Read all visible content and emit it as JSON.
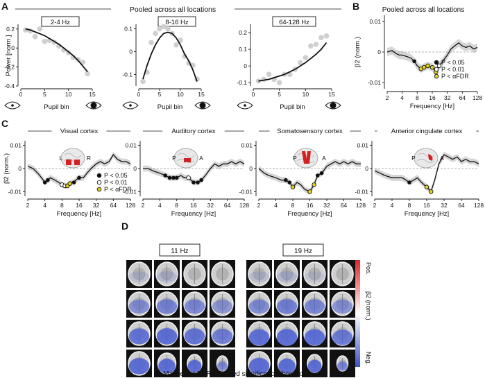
{
  "panel_letters": {
    "a": "A",
    "b": "B",
    "c": "C",
    "d": "D"
  },
  "panel_a": {
    "title": "Pooled across all locations",
    "ylabel": "Power [norm.]",
    "xlabel": "Pupil bin",
    "subplots": [
      {
        "label": "2-4 Hz",
        "yticks": [
          "0.2",
          "0",
          "-0.2",
          "-0.4"
        ],
        "xticks": [
          "0",
          "5",
          "10",
          "15"
        ]
      },
      {
        "label": "8-16 Hz",
        "yticks": [
          "0.1",
          "0",
          "-0.1"
        ],
        "xticks": [
          "0",
          "5",
          "10",
          "15"
        ]
      },
      {
        "label": "64-128 Hz",
        "yticks": [
          "0.2",
          "0.1",
          "0",
          "-0.1"
        ],
        "xticks": [
          "0",
          "5",
          "10",
          "15"
        ]
      }
    ]
  },
  "panel_b": {
    "title": "Pooled across all locations",
    "ylabel": "β2 (norm.)",
    "xlabel": "Frequency [Hz]",
    "yticks": [
      "0.01",
      "0",
      "-0.01"
    ],
    "xticks": [
      "2",
      "4",
      "8",
      "16",
      "32",
      "64",
      "128"
    ],
    "legend": [
      {
        "text": "P < 0.05"
      },
      {
        "text": "P < 0.01"
      },
      {
        "text": "P < αFDR"
      }
    ]
  },
  "panel_c": {
    "ylabel": "β2 (norm.)",
    "xlabel": "Frequency [Hz]",
    "yticks": [
      "0.01",
      "0",
      "-0.01"
    ],
    "xticks": [
      "2",
      "4",
      "8",
      "16",
      "32",
      "64",
      "128"
    ],
    "subplots": [
      {
        "title": "Visual cortex",
        "brain_left": "L",
        "brain_right": "R"
      },
      {
        "title": "Auditory cortex",
        "brain_left": "P",
        "brain_right": "A"
      },
      {
        "title": "Somatosensory cortex",
        "brain_left": "P",
        "brain_right": "A"
      },
      {
        "title": "Anterior cingulate cortex",
        "brain_left": "P",
        "brain_right": "A"
      }
    ],
    "legend": [
      {
        "text": "P < 0.05"
      },
      {
        "text": "P < 0.01"
      },
      {
        "text": "P < αFDR"
      }
    ]
  },
  "panel_d": {
    "left_label": "11 Hz",
    "right_label": "19 Hz",
    "colorbar_top": "Pos.",
    "colorbar_mid": "β2 (norm.)",
    "colorbar_bottom": "Neg.",
    "caption": "Masked at FDR-adjusted significance threshold"
  },
  "colors": {
    "fdr": "#e6d21e",
    "band": "#d6d6d6",
    "pos": "#e02424",
    "neg": "#3a4fc4",
    "brain_region": "#d42020"
  },
  "chart_data": [
    {
      "type": "scatter",
      "title": "2-4 Hz",
      "xlabel": "Pupil bin",
      "ylabel": "Power [norm.]",
      "xlim": [
        0,
        15
      ],
      "ylim": [
        -0.4,
        0.25
      ],
      "x": [
        1,
        2,
        3,
        4,
        5,
        6,
        7,
        8,
        9,
        10,
        11,
        12,
        13,
        14
      ],
      "y": [
        0.19,
        0.18,
        0.12,
        0.2,
        0.07,
        0.08,
        0.06,
        0.02,
        -0.02,
        -0.05,
        -0.1,
        -0.12,
        -0.15,
        -0.27
      ],
      "fit_x": [
        1,
        2,
        3,
        4,
        5,
        6,
        7,
        8,
        9,
        10,
        11,
        12,
        13,
        14
      ],
      "fit_y": [
        0.2,
        0.19,
        0.17,
        0.15,
        0.13,
        0.1,
        0.07,
        0.04,
        0.0,
        -0.04,
        -0.08,
        -0.13,
        -0.19,
        -0.25
      ]
    },
    {
      "type": "scatter",
      "title": "8-16 Hz",
      "xlabel": "Pupil bin",
      "xlim": [
        0,
        15
      ],
      "ylim": [
        -0.15,
        0.12
      ],
      "x": [
        1,
        2,
        3,
        4,
        5,
        6,
        7,
        8,
        9,
        10,
        11,
        12,
        13,
        14
      ],
      "y": [
        -0.13,
        -0.09,
        0.04,
        0.08,
        0.1,
        0.11,
        0.1,
        0.08,
        0.03,
        0.05,
        -0.02,
        -0.05,
        -0.06,
        -0.12
      ],
      "fit_x": [
        1,
        2,
        3,
        4,
        5,
        6,
        7,
        8,
        9,
        10,
        11,
        12,
        13,
        14
      ],
      "fit_y": [
        -0.12,
        -0.06,
        -0.01,
        0.03,
        0.06,
        0.08,
        0.085,
        0.08,
        0.06,
        0.03,
        -0.01,
        -0.04,
        -0.08,
        -0.13
      ]
    },
    {
      "type": "scatter",
      "title": "64-128 Hz",
      "xlabel": "Pupil bin",
      "xlim": [
        0,
        15
      ],
      "ylim": [
        -0.12,
        0.25
      ],
      "x": [
        1,
        2,
        3,
        4,
        5,
        6,
        7,
        8,
        9,
        10,
        11,
        12,
        13,
        14
      ],
      "y": [
        -0.09,
        -0.08,
        -0.05,
        -0.08,
        -0.1,
        -0.05,
        -0.05,
        -0.02,
        0.02,
        0.05,
        0.12,
        0.13,
        0.17,
        0.18
      ],
      "fit_x": [
        1,
        2,
        3,
        4,
        5,
        6,
        7,
        8,
        9,
        10,
        11,
        12,
        13,
        14
      ],
      "fit_y": [
        -0.09,
        -0.085,
        -0.08,
        -0.07,
        -0.06,
        -0.05,
        -0.035,
        -0.02,
        0.0,
        0.02,
        0.045,
        0.07,
        0.1,
        0.14
      ]
    },
    {
      "type": "line",
      "title": "Pooled across all locations",
      "xlabel": "Frequency [Hz]",
      "ylabel": "β2 (norm.)",
      "xscale": "log2",
      "xlim": [
        2,
        128
      ],
      "ylim": [
        -0.012,
        0.012
      ],
      "x": [
        2,
        2.5,
        3,
        3.5,
        4,
        5,
        6,
        7,
        8,
        9.5,
        11,
        13,
        16,
        19,
        22,
        26,
        32,
        38,
        45,
        54,
        64,
        76,
        90,
        108,
        128
      ],
      "y": [
        0.0,
        0.0005,
        -0.0005,
        -0.001,
        -0.001,
        -0.0015,
        -0.002,
        -0.003,
        -0.0045,
        -0.0055,
        -0.005,
        -0.0045,
        -0.005,
        -0.0065,
        -0.0045,
        -0.003,
        -0.001,
        0.001,
        0.002,
        0.003,
        0.002,
        0.0015,
        0.002,
        0.001,
        0.0015
      ],
      "sig_p05_x": [
        7
      ],
      "sig_fdr_x": [
        9.5,
        11,
        13,
        16,
        19
      ],
      "sig_p01_x": [
        22
      ]
    },
    {
      "type": "line",
      "title": "Visual cortex",
      "xscale": "log2",
      "xlim": [
        2,
        128
      ],
      "ylim": [
        -0.012,
        0.012
      ],
      "x": [
        2,
        2.5,
        3,
        3.5,
        4,
        4.5,
        5,
        6,
        7,
        8,
        9,
        10,
        11,
        12,
        13,
        14,
        16,
        19,
        22,
        26,
        32,
        38,
        45,
        54,
        64,
        76,
        90,
        108,
        128
      ],
      "y": [
        0.001,
        0.0,
        -0.002,
        -0.004,
        -0.006,
        -0.005,
        -0.004,
        -0.005,
        -0.006,
        -0.007,
        -0.0075,
        -0.0075,
        -0.0065,
        -0.006,
        -0.006,
        -0.005,
        -0.004,
        -0.004,
        -0.002,
        0.0,
        0.002,
        0.003,
        0.002,
        0.003,
        0.006,
        0.004,
        0.003,
        0.003,
        0.002
      ],
      "sig_p05_x": [
        4,
        4.5,
        13,
        16
      ],
      "sig_p01_x": [
        8,
        9
      ],
      "sig_fdr_x": [
        10,
        11
      ]
    },
    {
      "type": "line",
      "title": "Auditory cortex",
      "xscale": "log2",
      "xlim": [
        2,
        128
      ],
      "ylim": [
        -0.012,
        0.012
      ],
      "x": [
        2,
        2.5,
        3,
        4,
        5,
        6,
        7,
        8,
        9.5,
        11,
        13,
        16,
        19,
        22,
        26,
        32,
        38,
        45,
        54,
        64,
        76,
        90,
        108,
        128
      ],
      "y": [
        0.0,
        0.0,
        -0.001,
        -0.002,
        -0.003,
        -0.004,
        -0.004,
        -0.004,
        -0.003,
        -0.004,
        -0.004,
        -0.006,
        -0.006,
        -0.005,
        -0.003,
        0.0,
        0.002,
        0.001,
        0.002,
        0.002,
        0.003,
        0.002,
        0.003,
        0.002
      ],
      "sig_p05_x": [
        5,
        6,
        7,
        8,
        16,
        19,
        22
      ],
      "sig_p01_x": [
        13
      ]
    },
    {
      "type": "line",
      "title": "Somatosensory cortex",
      "xscale": "log2",
      "xlim": [
        2,
        128
      ],
      "ylim": [
        -0.012,
        0.012
      ],
      "x": [
        2,
        2.5,
        3,
        4,
        5,
        6,
        7,
        8,
        9.5,
        11,
        13,
        16,
        19,
        22,
        26,
        32,
        38,
        45,
        54,
        64,
        76,
        90,
        108,
        128
      ],
      "y": [
        0.0,
        -0.002,
        -0.003,
        -0.004,
        -0.005,
        -0.005,
        -0.006,
        -0.008,
        -0.006,
        -0.007,
        -0.009,
        -0.01,
        -0.007,
        -0.003,
        -0.002,
        0.001,
        0.002,
        0.003,
        0.002,
        0.003,
        0.002,
        0.003,
        0.002,
        0.002
      ],
      "sig_p05_x": [
        6,
        7,
        22,
        26
      ],
      "sig_fdr_x": [
        8,
        16,
        19
      ]
    },
    {
      "type": "line",
      "title": "Anterior cingulate cortex",
      "xscale": "log2",
      "xlim": [
        2,
        128
      ],
      "ylim": [
        -0.012,
        0.012
      ],
      "x": [
        2,
        2.5,
        3,
        4,
        5,
        6,
        7,
        8,
        9.5,
        11,
        13,
        16,
        19,
        22,
        26,
        32,
        38,
        45,
        54,
        64,
        76,
        90,
        108,
        128
      ],
      "y": [
        -0.001,
        -0.002,
        -0.003,
        -0.004,
        -0.004,
        -0.004,
        -0.005,
        -0.006,
        -0.005,
        -0.004,
        -0.006,
        -0.008,
        -0.01,
        -0.005,
        0.002,
        0.006,
        0.005,
        0.004,
        0.005,
        0.003,
        0.004,
        0.003,
        0.003,
        0.002
      ],
      "sig_p05_x": [
        8
      ],
      "sig_fdr_x": [
        16,
        19
      ]
    }
  ]
}
